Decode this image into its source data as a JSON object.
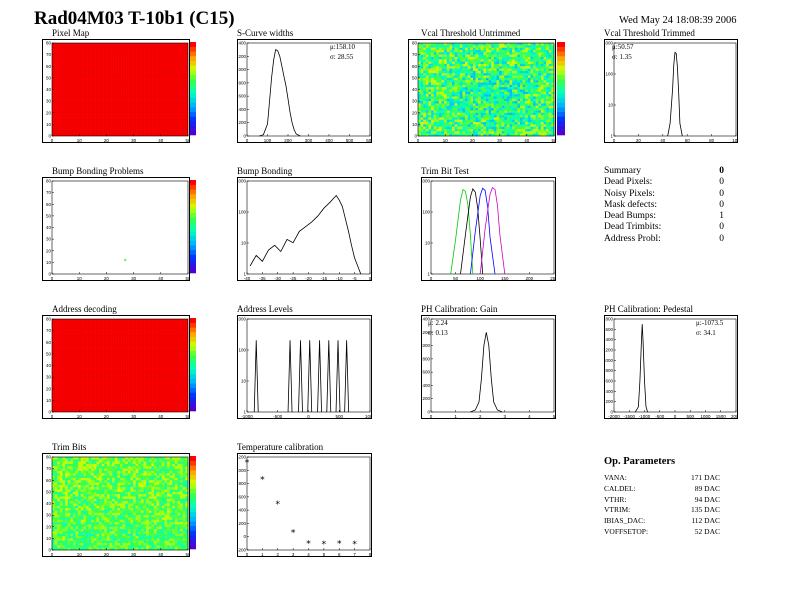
{
  "header": {
    "title": "Rad04M03 T-10b1 (C15)",
    "date": "Wed May 24 18:08:39 2006"
  },
  "panels": {
    "pixel_map": {
      "title": "Pixel Map"
    },
    "scurve": {
      "title": "S-Curve widths",
      "mu": "μ:158.10",
      "sigma": "σ: 28.55"
    },
    "vcal_untrim": {
      "title": "Vcal Threshold Untrimmed"
    },
    "vcal_trim": {
      "title": "Vcal Threshold Trimmed",
      "mu": "μ:50.57",
      "sigma": "σ: 1.35"
    },
    "bump_problems": {
      "title": "Bump Bonding Problems"
    },
    "bump_bonding": {
      "title": "Bump Bonding"
    },
    "trim_bit_test": {
      "title": "Trim Bit Test"
    },
    "address_decoding": {
      "title": "Address decoding"
    },
    "address_levels": {
      "title": "Address Levels"
    },
    "ph_gain": {
      "title": "PH Calibration: Gain",
      "mu": "μ: 2.24",
      "sigma": "σ: 0.13"
    },
    "ph_pedestal": {
      "title": "PH Calibration: Pedestal",
      "mu": "μ:-1073.5",
      "sigma": "σ: 34.1"
    },
    "trim_bits": {
      "title": "Trim Bits"
    },
    "temperature": {
      "title": "Temperature calibration"
    }
  },
  "summary": {
    "title": "Summary",
    "title_value": "0",
    "rows": [
      {
        "label": "Dead Pixels:",
        "value": "0"
      },
      {
        "label": "Noisy Pixels:",
        "value": "0"
      },
      {
        "label": "Mask defects:",
        "value": "0"
      },
      {
        "label": "Dead Bumps:",
        "value": "1"
      },
      {
        "label": "Dead Trimbits:",
        "value": "0"
      },
      {
        "label": "Address Probl:",
        "value": "0"
      }
    ]
  },
  "op_parameters": {
    "title": "Op. Parameters",
    "rows": [
      {
        "label": "VANA:",
        "value": "171 DAC"
      },
      {
        "label": "CALDEL:",
        "value": "89 DAC"
      },
      {
        "label": "VTHR:",
        "value": "94 DAC"
      },
      {
        "label": "VTRIM:",
        "value": "135 DAC"
      },
      {
        "label": "IBIAS_DAC:",
        "value": "112 DAC"
      },
      {
        "label": "VOFFSETOP:",
        "value": "52 DAC"
      }
    ]
  },
  "chart_data": [
    {
      "type": "heatmap",
      "title": "Pixel Map",
      "xlim": [
        0,
        52
      ],
      "ylim": [
        0,
        80
      ],
      "x_ticks": [
        "0",
        "10",
        "20",
        "30",
        "40",
        "50"
      ],
      "y_ticks": [
        "0",
        "10",
        "20",
        "30",
        "40",
        "50",
        "60",
        "70",
        "80"
      ],
      "fill_color": "#ff0000",
      "grid": "fine"
    },
    {
      "type": "line",
      "title": "S-Curve widths",
      "xlim": [
        0,
        600
      ],
      "ylim": [
        0,
        1400
      ],
      "x_ticks": [
        "0",
        "100",
        "200",
        "300",
        "400",
        "500",
        "600"
      ],
      "y_ticks": [
        "0",
        "200",
        "400",
        "600",
        "800",
        "1000",
        "1200",
        "1400"
      ],
      "x": [
        60,
        80,
        100,
        110,
        120,
        130,
        140,
        150,
        160,
        170,
        180,
        190,
        200,
        210,
        220,
        230,
        240,
        260
      ],
      "y": [
        0,
        20,
        180,
        520,
        880,
        1150,
        1300,
        1280,
        1200,
        1050,
        900,
        760,
        560,
        360,
        200,
        90,
        30,
        0
      ]
    },
    {
      "type": "heatmap",
      "title": "Vcal Threshold Untrimmed",
      "xlim": [
        0,
        52
      ],
      "ylim": [
        0,
        80
      ],
      "x_ticks": [
        "0",
        "10",
        "20",
        "30",
        "40",
        "50"
      ],
      "y_ticks": [
        "0",
        "10",
        "20",
        "30",
        "40",
        "50",
        "60",
        "70",
        "80"
      ],
      "colorbar_ticks": [
        "80",
        "90",
        "100",
        "110",
        "120",
        "130",
        "140"
      ]
    },
    {
      "type": "line",
      "title": "Vcal Threshold Trimmed",
      "xlim": [
        0,
        100
      ],
      "log_y": true,
      "x_ticks": [
        "0",
        "20",
        "40",
        "60",
        "80",
        "100"
      ],
      "y_ticks": [
        "1",
        "10",
        "100",
        "1000"
      ],
      "x": [
        44,
        46,
        48,
        49,
        50,
        51,
        52,
        53,
        54,
        56
      ],
      "y": [
        1,
        3,
        60,
        500,
        1400,
        1300,
        400,
        40,
        3,
        1
      ]
    },
    {
      "type": "heatmap",
      "title": "Bump Bonding Problems",
      "xlim": [
        0,
        52
      ],
      "ylim": [
        0,
        80
      ],
      "x_ticks": [
        "0",
        "10",
        "20",
        "30",
        "40",
        "50"
      ],
      "y_ticks": [
        "0",
        "10",
        "20",
        "30",
        "40",
        "50",
        "60",
        "70",
        "80"
      ],
      "colorbar_ticks": [
        "0",
        "0.1",
        "0.2",
        "0.3",
        "0.4",
        "0.5",
        "0.6",
        "0.7",
        "0.8",
        "0.9",
        "1"
      ],
      "points": [
        {
          "x": 28,
          "y": 12,
          "value": 0.6
        }
      ]
    },
    {
      "type": "line",
      "title": "Bump Bonding",
      "xlim": [
        -40,
        0
      ],
      "log_y": true,
      "x_ticks": [
        "-40",
        "-35",
        "-30",
        "-25",
        "-20",
        "-15",
        "-10",
        "-5",
        "0"
      ],
      "y_ticks": [
        "1",
        "10",
        "100",
        "1000"
      ],
      "x": [
        -39,
        -37,
        -35,
        -33,
        -31,
        -29,
        -27,
        -25,
        -23,
        -21,
        -19,
        -17,
        -15,
        -13,
        -11,
        -10,
        -9,
        -8,
        -7,
        -6,
        -5,
        -4,
        -3
      ],
      "y": [
        2,
        5,
        3,
        8,
        12,
        7,
        20,
        15,
        40,
        60,
        90,
        150,
        300,
        500,
        900,
        600,
        350,
        120,
        40,
        12,
        4,
        2,
        1
      ]
    },
    {
      "type": "line",
      "title": "Trim Bit Test",
      "xlim": [
        0,
        250
      ],
      "log_y": true,
      "x_ticks": [
        "0",
        "50",
        "100",
        "150",
        "200",
        "250"
      ],
      "y_ticks": [
        "1",
        "10",
        "100",
        "1000"
      ],
      "series": [
        {
          "color": "#00cc00",
          "x": [
            40,
            50,
            60,
            65,
            70,
            75,
            80,
            85
          ],
          "y": [
            1,
            20,
            600,
            1500,
            1300,
            400,
            30,
            1
          ]
        },
        {
          "color": "#000000",
          "x": [
            60,
            70,
            80,
            85,
            90,
            95,
            100,
            105
          ],
          "y": [
            1,
            30,
            800,
            1600,
            1200,
            300,
            20,
            1
          ]
        },
        {
          "color": "#0000ff",
          "x": [
            80,
            90,
            100,
            105,
            110,
            115,
            120,
            130
          ],
          "y": [
            1,
            40,
            900,
            1700,
            1400,
            350,
            25,
            1
          ]
        },
        {
          "color": "#cc00cc",
          "x": [
            100,
            110,
            120,
            125,
            130,
            135,
            140,
            150
          ],
          "y": [
            1,
            50,
            1000,
            1800,
            1500,
            400,
            30,
            1
          ]
        }
      ]
    },
    {
      "type": "heatmap",
      "title": "Address decoding",
      "xlim": [
        0,
        52
      ],
      "ylim": [
        0,
        80
      ],
      "x_ticks": [
        "0",
        "10",
        "20",
        "30",
        "40",
        "50"
      ],
      "y_ticks": [
        "0",
        "10",
        "20",
        "30",
        "40",
        "50",
        "60",
        "70",
        "80"
      ],
      "colorbar_ticks": [
        "0",
        "0.1",
        "0.2",
        "0.3",
        "0.4",
        "0.5",
        "0.6",
        "0.7",
        "0.8",
        "0.9",
        "1"
      ],
      "fill_color": "#ff0000"
    },
    {
      "type": "line",
      "title": "Address Levels",
      "xlim": [
        -1000,
        1000
      ],
      "log_y": true,
      "x_ticks": [
        "-1000",
        "-500",
        "0",
        "500",
        "1000"
      ],
      "y_ticks": [
        "1",
        "10",
        "100",
        "1000"
      ],
      "peaks": [
        -850,
        -300,
        -130,
        20,
        180,
        330,
        480,
        620
      ],
      "peak_heights": [
        500,
        500,
        500,
        500,
        500,
        500,
        500,
        500
      ]
    },
    {
      "type": "line",
      "title": "PH Calibration: Gain",
      "xlim": [
        0,
        5
      ],
      "ylim": [
        0,
        1400
      ],
      "x_ticks": [
        "0",
        "1",
        "2",
        "3",
        "4",
        "5"
      ],
      "y_ticks": [
        "0",
        "200",
        "400",
        "600",
        "800",
        "1000",
        "1200",
        "1400"
      ],
      "x": [
        1.6,
        1.8,
        1.95,
        2.05,
        2.15,
        2.25,
        2.35,
        2.45,
        2.55,
        2.7,
        2.9
      ],
      "y": [
        0,
        30,
        150,
        500,
        1000,
        1200,
        1000,
        500,
        150,
        30,
        0
      ]
    },
    {
      "type": "line",
      "title": "PH Calibration: Pedestal",
      "xlim": [
        -2000,
        2000
      ],
      "ylim": [
        0,
        1800
      ],
      "x_ticks": [
        "-2000",
        "-1500",
        "-1000",
        "-500",
        "0",
        "500",
        "1000",
        "1500",
        "2000"
      ],
      "y_ticks": [
        "0",
        "200",
        "400",
        "600",
        "800",
        "1000",
        "1200",
        "1400",
        "1600",
        "1800"
      ],
      "x": [
        -1300,
        -1200,
        -1150,
        -1100,
        -1075,
        -1050,
        -1000,
        -950,
        -900
      ],
      "y": [
        0,
        100,
        600,
        1400,
        1700,
        1400,
        600,
        100,
        0
      ]
    },
    {
      "type": "heatmap",
      "title": "Trim Bits",
      "xlim": [
        0,
        52
      ],
      "ylim": [
        0,
        80
      ],
      "x_ticks": [
        "0",
        "10",
        "20",
        "30",
        "40",
        "50"
      ],
      "y_ticks": [
        "0",
        "10",
        "20",
        "30",
        "40",
        "50",
        "60",
        "70",
        "80"
      ],
      "colorbar_ticks": [
        "0",
        "2",
        "4",
        "6",
        "8",
        "10",
        "12",
        "14"
      ]
    },
    {
      "type": "scatter",
      "title": "Temperature calibration",
      "xlim": [
        0,
        8
      ],
      "ylim": [
        -200,
        1200
      ],
      "x_ticks": [
        "0",
        "1",
        "2",
        "3",
        "4",
        "5",
        "6",
        "7",
        "8"
      ],
      "y_ticks": [
        "-200",
        "0",
        "200",
        "400",
        "600",
        "800",
        "1000",
        "1200"
      ],
      "marker": "*",
      "x": [
        0,
        1,
        2,
        3,
        4,
        5,
        6,
        7
      ],
      "y": [
        1120,
        860,
        490,
        60,
        -100,
        -110,
        -100,
        -110
      ]
    }
  ]
}
